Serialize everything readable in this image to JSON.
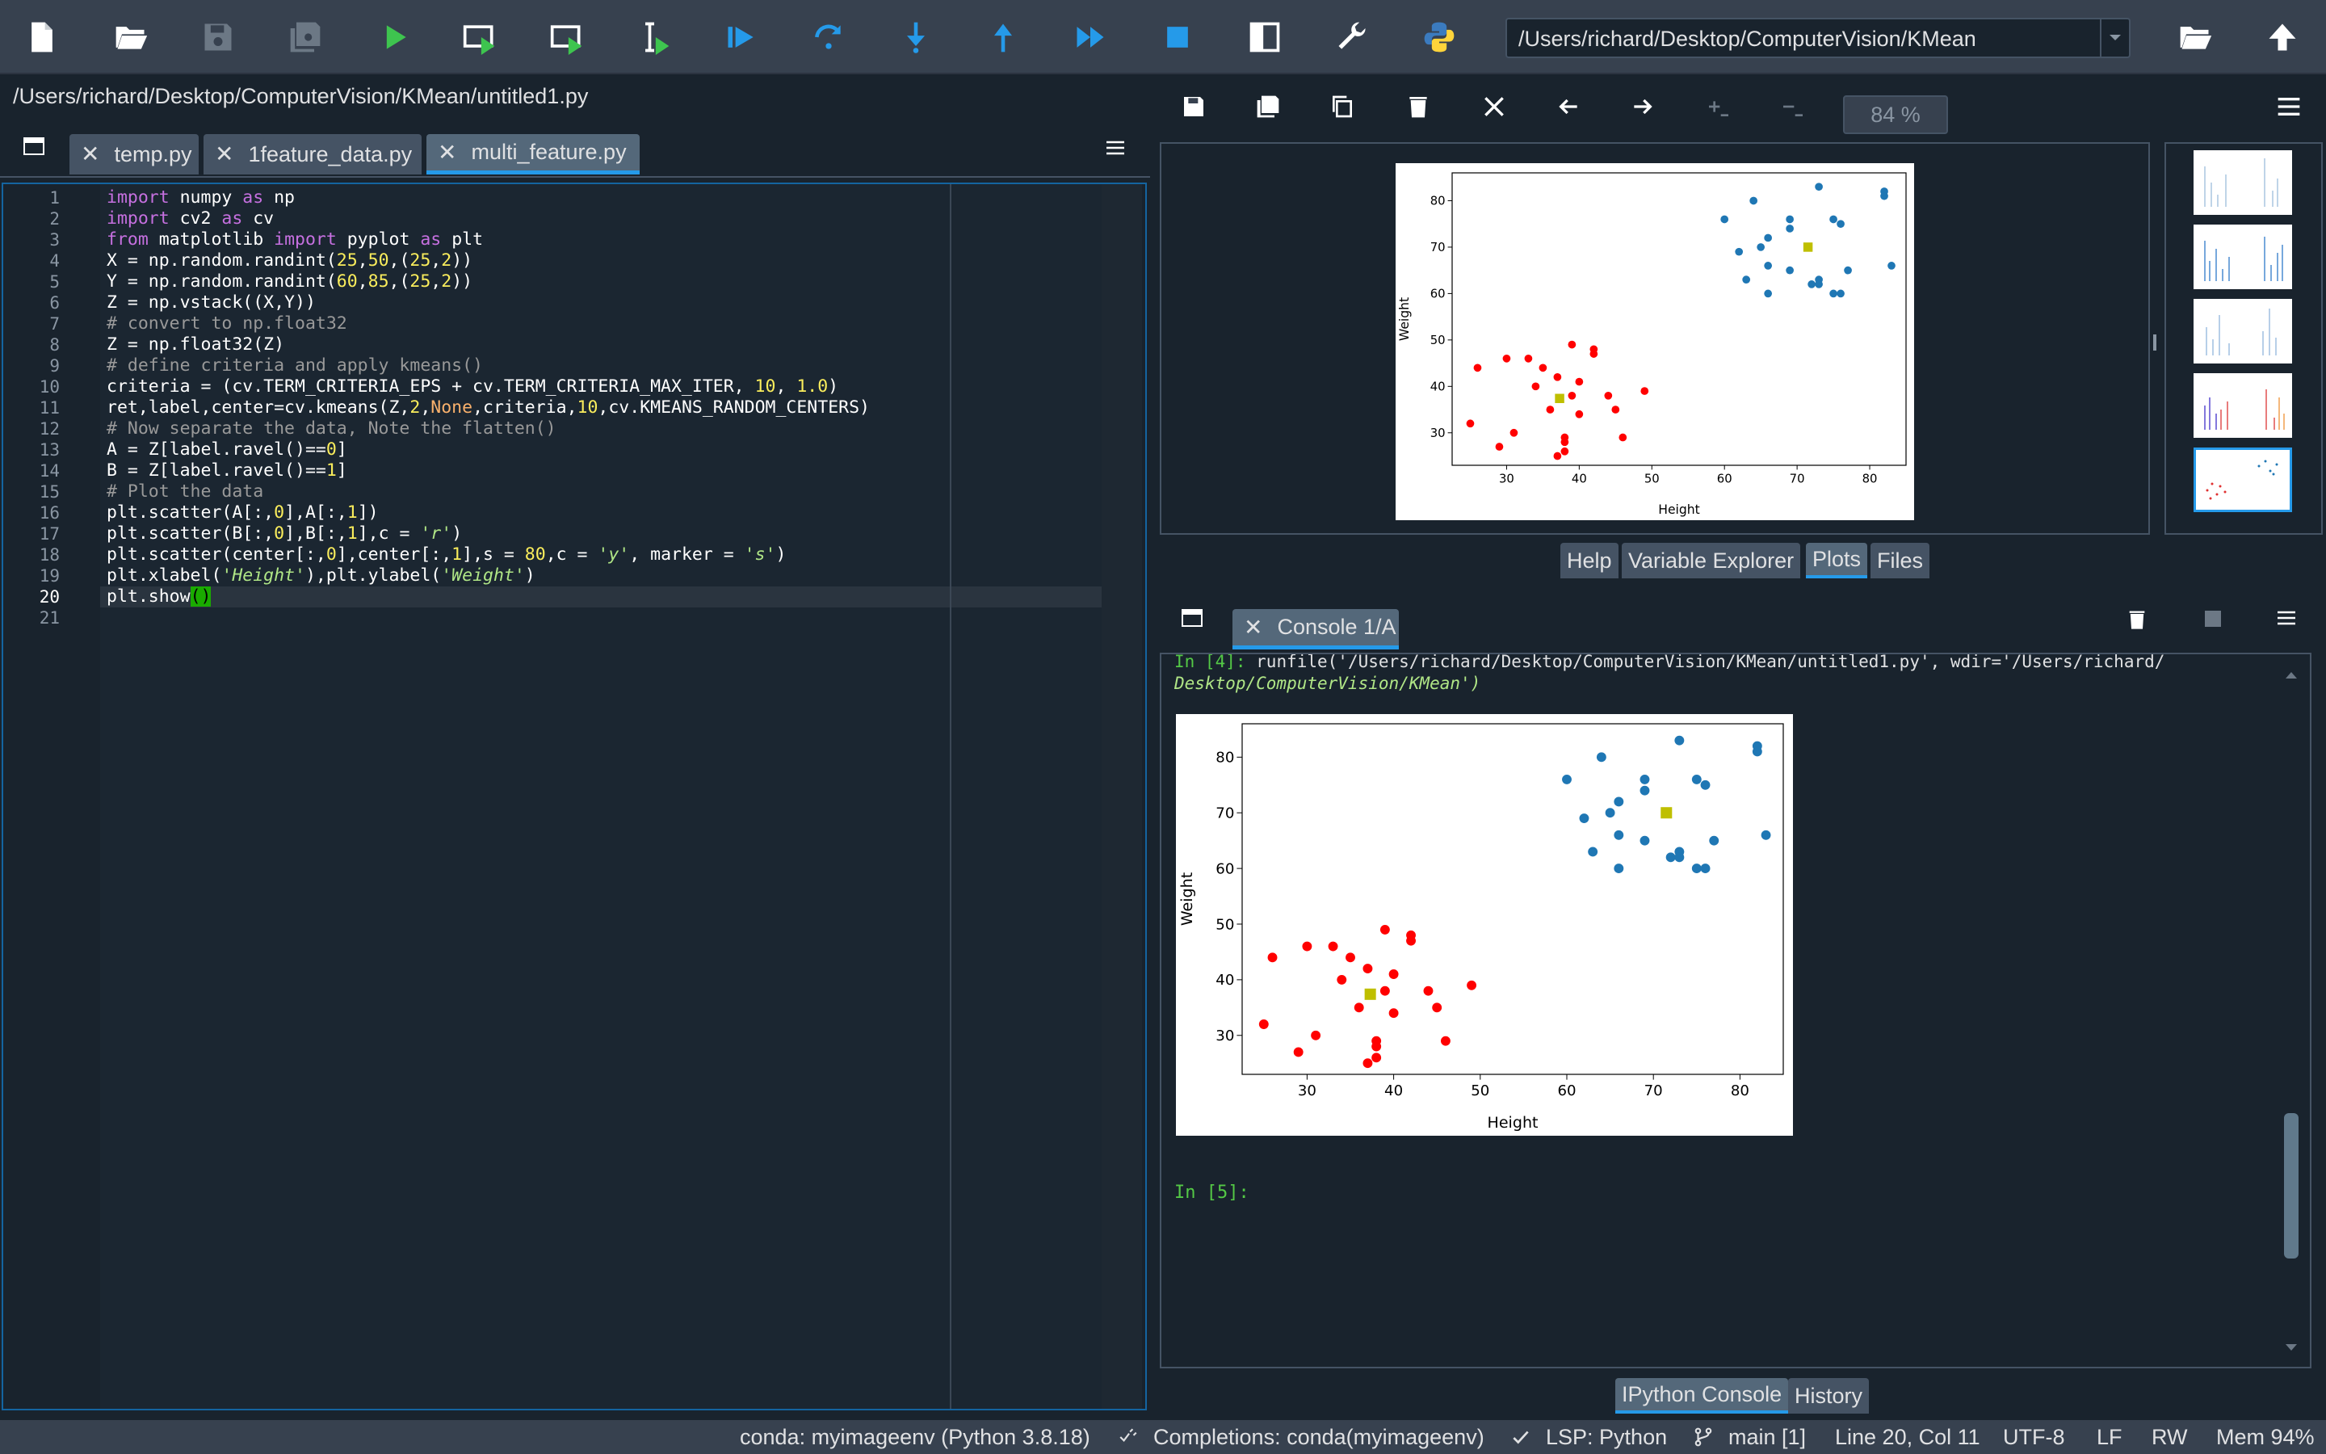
{
  "toolbar": {
    "buttons": [
      "new-file",
      "open-file",
      "save",
      "save-all",
      "run",
      "run-cell",
      "run-cell-advance",
      "run-selection",
      "debug",
      "step-over",
      "step-into",
      "step-out",
      "continue",
      "stop",
      "maximize-pane",
      "preferences",
      "python-path-manager"
    ],
    "working_directory": "/Users/richard/Desktop/ComputerVision/KMean"
  },
  "editor": {
    "file_path": "/Users/richard/Desktop/ComputerVision/KMean/untitled1.py",
    "tabs": [
      {
        "label": "temp.py",
        "active": false
      },
      {
        "label": "1feature_data.py",
        "active": false
      },
      {
        "label": "multi_feature.py",
        "active": true
      }
    ],
    "line_numbers": [
      "1",
      "2",
      "3",
      "4",
      "5",
      "6",
      "7",
      "8",
      "9",
      "10",
      "11",
      "12",
      "13",
      "14",
      "15",
      "16",
      "17",
      "18",
      "19",
      "20",
      "21"
    ],
    "current_line": 20,
    "lines": [
      "import numpy as np",
      "import cv2 as cv",
      "from matplotlib import pyplot as plt",
      "X = np.random.randint(25,50,(25,2))",
      "Y = np.random.randint(60,85,(25,2))",
      "Z = np.vstack((X,Y))",
      "# convert to np.float32",
      "Z = np.float32(Z)",
      "# define criteria and apply kmeans()",
      "criteria = (cv.TERM_CRITERIA_EPS + cv.TERM_CRITERIA_MAX_ITER, 10, 1.0)",
      "ret,label,center=cv.kmeans(Z,2,None,criteria,10,cv.KMEANS_RANDOM_CENTERS)",
      "# Now separate the data, Note the flatten()",
      "A = Z[label.ravel()==0]",
      "B = Z[label.ravel()==1]",
      "# Plot the data",
      "plt.scatter(A[:,0],A[:,1])",
      "plt.scatter(B[:,0],B[:,1],c = 'r')",
      "plt.scatter(center[:,0],center[:,1],s = 80,c = 'y', marker = 's')",
      "plt.xlabel('Height'),plt.ylabel('Weight')",
      "plt.show()",
      ""
    ]
  },
  "plots": {
    "zoom": "84 %",
    "tabs": [
      "Help",
      "Variable Explorer",
      "Plots",
      "Files"
    ],
    "active_tab": "Plots"
  },
  "console": {
    "tab_label": "Console 1/A",
    "run_prompt": "In [4]: ",
    "run_command": "runfile('/Users/richard/Desktop/ComputerVision/KMean/untitled1.py', wdir='/Users/richard/",
    "run_command_cont": "Desktop/ComputerVision/KMean')",
    "next_prompt": "In [5]:",
    "tabs": [
      "IPython Console",
      "History"
    ],
    "active_tab": "IPython Console"
  },
  "chart_data": {
    "type": "scatter",
    "xlabel": "Height",
    "ylabel": "Weight",
    "xlim": [
      22.5,
      85
    ],
    "ylim": [
      23,
      86
    ],
    "xticks": [
      30,
      40,
      50,
      60,
      70,
      80
    ],
    "yticks": [
      30,
      40,
      50,
      60,
      70,
      80
    ],
    "grid": false,
    "series": [
      {
        "color": "#1f77b4",
        "points": [
          [
            60,
            76
          ],
          [
            62,
            69
          ],
          [
            64,
            80
          ],
          [
            63,
            63
          ],
          [
            65,
            70
          ],
          [
            66,
            72
          ],
          [
            66,
            66
          ],
          [
            66,
            60
          ],
          [
            69,
            65
          ],
          [
            69,
            74
          ],
          [
            69,
            76
          ],
          [
            72,
            62
          ],
          [
            73,
            83
          ],
          [
            73,
            63
          ],
          [
            73,
            62
          ],
          [
            75,
            76
          ],
          [
            76,
            75
          ],
          [
            75,
            60
          ],
          [
            76,
            60
          ],
          [
            77,
            65
          ],
          [
            82,
            81
          ],
          [
            82,
            82
          ],
          [
            83,
            66
          ]
        ]
      },
      {
        "color": "#ff0000",
        "points": [
          [
            25,
            32
          ],
          [
            26,
            44
          ],
          [
            29,
            27
          ],
          [
            30,
            46
          ],
          [
            31,
            30
          ],
          [
            33,
            46
          ],
          [
            34,
            40
          ],
          [
            35,
            44
          ],
          [
            36,
            35
          ],
          [
            37,
            42
          ],
          [
            37,
            25
          ],
          [
            38,
            26
          ],
          [
            38,
            29
          ],
          [
            38,
            28
          ],
          [
            39,
            38
          ],
          [
            39,
            49
          ],
          [
            40,
            41
          ],
          [
            40,
            34
          ],
          [
            42,
            48
          ],
          [
            42,
            47
          ],
          [
            44,
            38
          ],
          [
            45,
            35
          ],
          [
            46,
            29
          ],
          [
            49,
            39
          ]
        ]
      },
      {
        "color": "#bfbf00",
        "marker": "square",
        "points": [
          [
            37.3,
            37.4
          ],
          [
            71.5,
            70
          ]
        ]
      }
    ]
  },
  "thumbnails": {
    "count": 5,
    "selected": 5
  },
  "status": {
    "env": "conda: myimageenv (Python 3.8.18)",
    "completions": "Completions: conda(myimageenv)",
    "lsp": "LSP: Python",
    "git": "main [1]",
    "position": "Line 20, Col 11",
    "encoding": "UTF-8",
    "eol": "LF",
    "mode": "RW",
    "mem": "Mem 94%"
  },
  "colors": {
    "accent": "#259ae9",
    "background": "#19232d",
    "toolbar": "#37414f"
  }
}
